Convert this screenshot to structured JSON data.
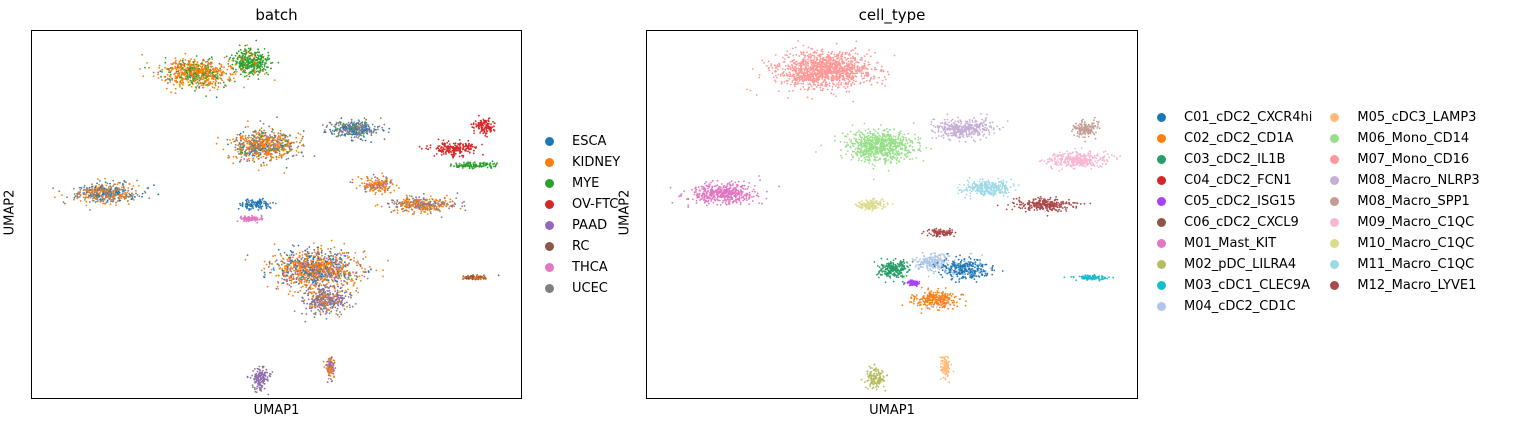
{
  "chart_data": [
    {
      "type": "scatter",
      "title": "batch",
      "xlabel": "UMAP1",
      "ylabel": "UMAP2",
      "grid": false,
      "legend_position": "right",
      "legend": [
        "ESCA",
        "KIDNEY",
        "MYE",
        "OV-FTC",
        "PAAD",
        "RC",
        "THCA",
        "UCEC"
      ],
      "colors": {
        "ESCA": "#1f77b4",
        "KIDNEY": "#ff7f0e",
        "MYE": "#2ca02c",
        "OV-FTC": "#d62728",
        "PAAD": "#9467bd",
        "RC": "#8c564b",
        "THCA": "#e377c2",
        "UCEC": "#7f7f7f"
      },
      "clusters": [
        {
          "x": 0.3,
          "y": 0.83,
          "rx": 0.08,
          "ry": 0.055,
          "mix": {
            "KIDNEY": 0.65,
            "MYE": 0.25,
            "ESCA": 0.05,
            "UCEC": 0.05
          }
        },
        {
          "x": 0.42,
          "y": 0.87,
          "rx": 0.045,
          "ry": 0.05,
          "mix": {
            "MYE": 0.85,
            "KIDNEY": 0.15
          }
        },
        {
          "x": 0.45,
          "y": 0.57,
          "rx": 0.075,
          "ry": 0.06,
          "mix": {
            "KIDNEY": 0.55,
            "UCEC": 0.3,
            "ESCA": 0.1,
            "MYE": 0.05
          }
        },
        {
          "x": 0.64,
          "y": 0.63,
          "rx": 0.06,
          "ry": 0.035,
          "mix": {
            "UCEC": 0.45,
            "ESCA": 0.35,
            "MYE": 0.1,
            "PAAD": 0.1
          }
        },
        {
          "x": 0.86,
          "y": 0.56,
          "rx": 0.05,
          "ry": 0.025,
          "mix": {
            "OV-FTC": 1.0
          }
        },
        {
          "x": 0.92,
          "y": 0.64,
          "rx": 0.025,
          "ry": 0.03,
          "mix": {
            "OV-FTC": 1.0
          }
        },
        {
          "x": 0.9,
          "y": 0.5,
          "rx": 0.055,
          "ry": 0.012,
          "mix": {
            "MYE": 1.0
          }
        },
        {
          "x": 0.11,
          "y": 0.4,
          "rx": 0.075,
          "ry": 0.04,
          "mix": {
            "UCEC": 0.45,
            "KIDNEY": 0.35,
            "ESCA": 0.2
          }
        },
        {
          "x": 0.69,
          "y": 0.43,
          "rx": 0.04,
          "ry": 0.03,
          "mix": {
            "KIDNEY": 0.7,
            "UCEC": 0.2,
            "PAAD": 0.1
          }
        },
        {
          "x": 0.79,
          "y": 0.36,
          "rx": 0.075,
          "ry": 0.03,
          "mix": {
            "KIDNEY": 0.55,
            "UCEC": 0.3,
            "PAAD": 0.15
          }
        },
        {
          "x": 0.43,
          "y": 0.36,
          "rx": 0.035,
          "ry": 0.02,
          "mix": {
            "ESCA": 0.9,
            "UCEC": 0.1
          }
        },
        {
          "x": 0.42,
          "y": 0.31,
          "rx": 0.025,
          "ry": 0.01,
          "mix": {
            "THCA": 1.0
          }
        },
        {
          "x": 0.56,
          "y": 0.13,
          "rx": 0.1,
          "ry": 0.07,
          "mix": {
            "KIDNEY": 0.5,
            "ESCA": 0.2,
            "UCEC": 0.2,
            "THCA": 0.05,
            "PAAD": 0.05
          }
        },
        {
          "x": 0.58,
          "y": 0.02,
          "rx": 0.05,
          "ry": 0.05,
          "mix": {
            "UCEC": 0.5,
            "PAAD": 0.3,
            "KIDNEY": 0.2
          }
        },
        {
          "x": 0.9,
          "y": 0.1,
          "rx": 0.03,
          "ry": 0.008,
          "mix": {
            "RC": 0.6,
            "KIDNEY": 0.4
          }
        },
        {
          "x": 0.44,
          "y": -0.26,
          "rx": 0.02,
          "ry": 0.045,
          "mix": {
            "PAAD": 0.7,
            "UCEC": 0.3
          }
        },
        {
          "x": 0.59,
          "y": -0.22,
          "rx": 0.01,
          "ry": 0.045,
          "mix": {
            "KIDNEY": 0.6,
            "PAAD": 0.4
          }
        }
      ]
    },
    {
      "type": "scatter",
      "title": "cell_type",
      "xlabel": "UMAP1",
      "ylabel": "UMAP2",
      "grid": false,
      "legend_position": "right",
      "legend": [
        "C01_cDC2_CXCR4hi",
        "C02_cDC2_CD1A",
        "C03_cDC2_IL1B",
        "C04_cDC2_FCN1",
        "C05_cDC2_ISG15",
        "C06_cDC2_CXCL9",
        "M01_Mast_KIT",
        "M02_pDC_LILRA4",
        "M03_cDC1_CLEC9A",
        "M04_cDC2_CD1C",
        "M05_cDC3_LAMP3",
        "M06_Mono_CD14",
        "M07_Mono_CD16",
        "M08_Macro_NLRP3",
        "M08_Macro_SPP1",
        "M09_Macro_C1QC",
        "M10_Macro_C1QC",
        "M11_Macro_C1QC",
        "M12_Macro_LYVE1"
      ],
      "colors": {
        "C01_cDC2_CXCR4hi": "#1f77b4",
        "C02_cDC2_CD1A": "#ff7f0e",
        "C03_cDC2_IL1B": "#279e68",
        "C04_cDC2_FCN1": "#d62728",
        "C05_cDC2_ISG15": "#aa40fc",
        "C06_cDC2_CXCL9": "#8c564b",
        "M01_Mast_KIT": "#e377c2",
        "M02_pDC_LILRA4": "#b5bd61",
        "M03_cDC1_CLEC9A": "#17becf",
        "M04_cDC2_CD1C": "#aec7e8",
        "M05_cDC3_LAMP3": "#ffbb78",
        "M06_Mono_CD14": "#98df8a",
        "M07_Mono_CD16": "#ff9896",
        "M08_Macro_NLRP3": "#c5b0d5",
        "M08_Macro_SPP1": "#c49c94",
        "M09_Macro_C1QC": "#f7b6d2",
        "M10_Macro_C1QC": "#dbdb8d",
        "M11_Macro_C1QC": "#9edae5",
        "M12_Macro_LYVE1": "#ad494a"
      },
      "clusters": [
        {
          "x": 0.33,
          "y": 0.84,
          "rx": 0.11,
          "ry": 0.07,
          "mix": {
            "M07_Mono_CD16": 1.0
          }
        },
        {
          "x": 0.45,
          "y": 0.57,
          "rx": 0.08,
          "ry": 0.06,
          "mix": {
            "M06_Mono_CD14": 1.0
          }
        },
        {
          "x": 0.63,
          "y": 0.63,
          "rx": 0.07,
          "ry": 0.035,
          "mix": {
            "M08_Macro_NLRP3": 1.0
          }
        },
        {
          "x": 0.89,
          "y": 0.63,
          "rx": 0.03,
          "ry": 0.03,
          "mix": {
            "M08_Macro_SPP1": 1.0
          }
        },
        {
          "x": 0.87,
          "y": 0.52,
          "rx": 0.07,
          "ry": 0.03,
          "mix": {
            "M09_Macro_C1QC": 1.0
          }
        },
        {
          "x": 0.11,
          "y": 0.4,
          "rx": 0.075,
          "ry": 0.04,
          "mix": {
            "M01_Mast_KIT": 1.0
          }
        },
        {
          "x": 0.68,
          "y": 0.42,
          "rx": 0.06,
          "ry": 0.03,
          "mix": {
            "M11_Macro_C1QC": 1.0
          }
        },
        {
          "x": 0.8,
          "y": 0.36,
          "rx": 0.07,
          "ry": 0.025,
          "mix": {
            "M12_Macro_LYVE1": 1.0
          }
        },
        {
          "x": 0.43,
          "y": 0.36,
          "rx": 0.035,
          "ry": 0.02,
          "mix": {
            "M10_Macro_C1QC": 1.0
          }
        },
        {
          "x": 0.58,
          "y": 0.26,
          "rx": 0.03,
          "ry": 0.015,
          "mix": {
            "M12_Macro_LYVE1": 1.0
          }
        },
        {
          "x": 0.48,
          "y": 0.13,
          "rx": 0.04,
          "ry": 0.035,
          "mix": {
            "C03_cDC2_IL1B": 1.0
          }
        },
        {
          "x": 0.56,
          "y": 0.15,
          "rx": 0.04,
          "ry": 0.035,
          "mix": {
            "M04_cDC2_CD1C": 1.0
          }
        },
        {
          "x": 0.63,
          "y": 0.13,
          "rx": 0.055,
          "ry": 0.04,
          "mix": {
            "C01_cDC2_CXCR4hi": 0.75,
            "M04_cDC2_CD1C": 0.25
          }
        },
        {
          "x": 0.52,
          "y": 0.08,
          "rx": 0.012,
          "ry": 0.01,
          "mix": {
            "C05_cDC2_ISG15": 1.0
          }
        },
        {
          "x": 0.57,
          "y": 0.02,
          "rx": 0.05,
          "ry": 0.035,
          "mix": {
            "C02_cDC2_CD1A": 0.85,
            "M04_cDC2_CD1C": 0.15
          }
        },
        {
          "x": 0.9,
          "y": 0.1,
          "rx": 0.035,
          "ry": 0.008,
          "mix": {
            "M03_cDC1_CLEC9A": 1.0
          }
        },
        {
          "x": 0.44,
          "y": -0.26,
          "rx": 0.02,
          "ry": 0.045,
          "mix": {
            "M02_pDC_LILRA4": 1.0
          }
        },
        {
          "x": 0.59,
          "y": -0.22,
          "rx": 0.01,
          "ry": 0.045,
          "mix": {
            "M05_cDC3_LAMP3": 1.0
          }
        }
      ]
    }
  ]
}
